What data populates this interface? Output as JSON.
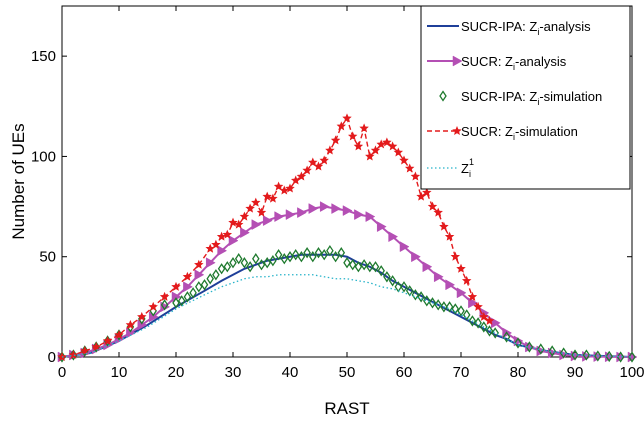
{
  "chart_data": {
    "type": "line",
    "xlabel": "RAST",
    "ylabel": "Number of UEs",
    "xlim": [
      0,
      100
    ],
    "ylim": [
      0,
      175
    ],
    "xticks": [
      0,
      10,
      20,
      30,
      40,
      50,
      60,
      70,
      80,
      90,
      100
    ],
    "yticks": [
      0,
      50,
      100,
      150
    ],
    "grid": false,
    "legend_position": "top-right",
    "series": [
      {
        "name": "SUCR-IPA: Z_i-analysis",
        "label_main": "SUCR-IPA: Z",
        "label_sub": "i",
        "label_tail": "-analysis",
        "style": "solid",
        "marker": "none",
        "color": "#1f3f99",
        "x": [
          0,
          5,
          10,
          15,
          20,
          25,
          28,
          30,
          32,
          34,
          36,
          38,
          40,
          42,
          44,
          46,
          48,
          50,
          52,
          54,
          56,
          58,
          60,
          62,
          64,
          66,
          68,
          70,
          72,
          74,
          76,
          78,
          80,
          85,
          90,
          95,
          100
        ],
        "y": [
          0,
          2,
          8,
          16,
          25,
          33,
          38,
          41,
          44,
          46,
          48,
          49,
          50,
          51,
          51,
          51,
          51,
          50,
          47,
          45,
          42,
          38,
          35,
          32,
          29,
          26,
          23,
          20,
          17,
          14,
          11,
          9,
          6,
          3,
          1,
          0.5,
          0
        ]
      },
      {
        "name": "SUCR: Z_i-analysis",
        "label_main": "SUCR: Z",
        "label_sub": "i",
        "label_tail": "-analysis",
        "style": "solid",
        "marker": "triangle-right",
        "color": "#b44fb4",
        "x": [
          0,
          2,
          4,
          6,
          8,
          10,
          12,
          14,
          16,
          18,
          20,
          22,
          24,
          26,
          28,
          30,
          32,
          34,
          36,
          38,
          40,
          42,
          44,
          46,
          48,
          50,
          52,
          54,
          56,
          58,
          60,
          62,
          64,
          66,
          68,
          70,
          72,
          74,
          76,
          78,
          80,
          82,
          84,
          86,
          88,
          90,
          92,
          94,
          96,
          98,
          100
        ],
        "y": [
          0,
          1,
          2,
          4,
          6,
          9,
          12,
          16,
          20,
          25,
          30,
          35,
          41,
          47,
          53,
          58,
          62,
          66,
          68,
          70,
          71,
          72,
          74,
          75,
          74,
          73,
          71,
          70,
          65,
          60,
          55,
          50,
          45,
          40,
          36,
          32,
          27,
          22,
          17,
          12,
          8,
          5,
          3,
          2,
          1,
          0.5,
          0.3,
          0.2,
          0.1,
          0,
          0
        ]
      },
      {
        "name": "SUCR-IPA: Z_i-simulation",
        "label_main": "SUCR-IPA: Z",
        "label_sub": "i",
        "label_tail": "-simulation",
        "style": "none",
        "marker": "diamond",
        "color": "#1f7a2e",
        "x": [
          0,
          2,
          4,
          6,
          8,
          10,
          12,
          14,
          16,
          18,
          20,
          21,
          22,
          23,
          24,
          25,
          26,
          27,
          28,
          29,
          30,
          31,
          32,
          33,
          34,
          35,
          36,
          37,
          38,
          39,
          40,
          41,
          42,
          43,
          44,
          45,
          46,
          47,
          48,
          49,
          50,
          51,
          52,
          53,
          54,
          55,
          56,
          57,
          58,
          59,
          60,
          61,
          62,
          63,
          64,
          65,
          66,
          67,
          68,
          69,
          70,
          71,
          72,
          73,
          74,
          75,
          76,
          78,
          80,
          82,
          84,
          86,
          88,
          90,
          92,
          94,
          96,
          98,
          100
        ],
        "y": [
          0,
          1,
          3,
          5,
          8,
          11,
          15,
          19,
          23,
          26,
          27,
          28,
          30,
          32,
          35,
          36,
          39,
          41,
          44,
          45,
          47,
          49,
          47,
          45,
          49,
          46,
          47,
          48,
          51,
          49,
          50,
          51,
          50,
          52,
          50,
          52,
          51,
          53,
          50,
          52,
          47,
          46,
          45,
          46,
          45,
          45,
          43,
          40,
          38,
          35,
          35,
          33,
          31,
          30,
          28,
          27,
          26,
          25,
          25,
          24,
          23,
          21,
          18,
          17,
          15,
          13,
          12,
          10,
          7,
          5,
          4,
          3,
          2,
          1,
          1,
          0.5,
          0.3,
          0,
          0
        ]
      },
      {
        "name": "SUCR: Z_i-simulation",
        "label_main": "SUCR: Z",
        "label_sub": "i",
        "label_tail": "-simulation",
        "style": "dashed",
        "marker": "star",
        "color": "#e31a1c",
        "x": [
          0,
          2,
          4,
          6,
          8,
          10,
          12,
          14,
          16,
          18,
          20,
          22,
          24,
          26,
          27,
          28,
          29,
          30,
          31,
          32,
          33,
          34,
          35,
          36,
          37,
          38,
          39,
          40,
          41,
          42,
          43,
          44,
          45,
          46,
          47,
          48,
          49,
          50,
          51,
          52,
          53,
          54,
          55,
          56,
          57,
          58,
          59,
          60,
          61,
          62,
          63,
          64,
          65,
          66,
          67,
          68,
          69,
          70,
          71,
          72,
          73,
          74,
          75
        ],
        "y": [
          0,
          1,
          3,
          5,
          8,
          11,
          16,
          20,
          25,
          30,
          35,
          40,
          46,
          54,
          56,
          60,
          61,
          67,
          66,
          70,
          74,
          77,
          72,
          80,
          79,
          85,
          83,
          84,
          88,
          90,
          93,
          97,
          95,
          98,
          103,
          108,
          115,
          119,
          110,
          105,
          114,
          100,
          103,
          106,
          107,
          105,
          102,
          98,
          94,
          90,
          80,
          82,
          75,
          72,
          65,
          60,
          50,
          44,
          38,
          30,
          25,
          20,
          18
        ]
      },
      {
        "name": "Z_i^1",
        "label_main": "Z",
        "label_sub": "i",
        "label_sup": "1",
        "label_tail": "",
        "style": "dotted",
        "marker": "none",
        "color": "#27b3c9",
        "x": [
          0,
          5,
          10,
          15,
          20,
          25,
          28,
          30,
          32,
          34,
          36,
          38,
          40,
          42,
          44,
          46,
          48,
          50,
          52,
          54,
          56,
          58,
          60,
          62,
          64,
          66,
          68,
          70,
          72,
          74,
          76,
          78,
          80,
          85,
          90,
          95,
          100
        ],
        "y": [
          0,
          2,
          8,
          15,
          24,
          31,
          35,
          37,
          39,
          40,
          40,
          41,
          41,
          41,
          41,
          40,
          39,
          39,
          38,
          37,
          35,
          34,
          32,
          30,
          28,
          26,
          24,
          21,
          18,
          15,
          12,
          9,
          6,
          3,
          1,
          0.5,
          0
        ]
      }
    ]
  }
}
